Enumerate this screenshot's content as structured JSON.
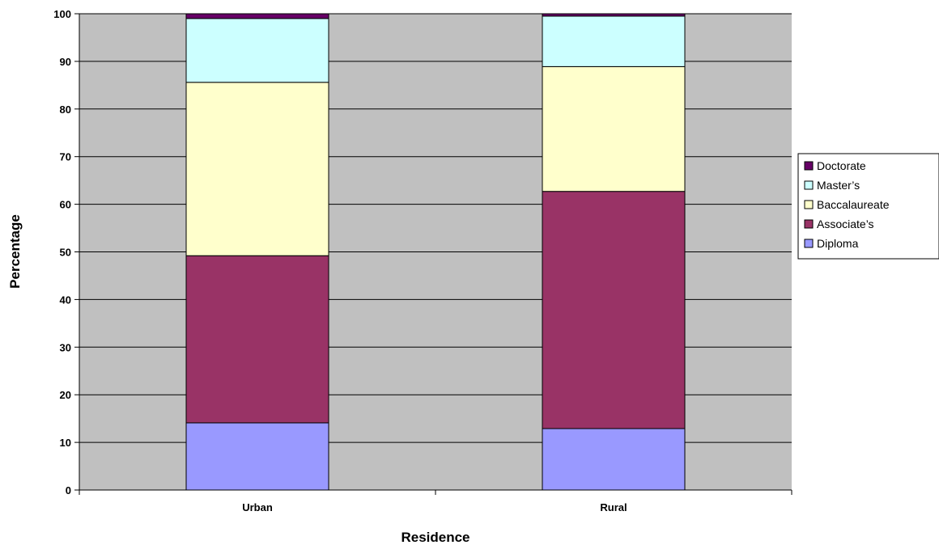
{
  "chart_data": {
    "type": "bar",
    "stacked": true,
    "title": "",
    "xlabel": "Residence",
    "ylabel": "Percentage",
    "categories": [
      "Urban",
      "Rural"
    ],
    "ylim": [
      0,
      100
    ],
    "yticks": [
      "0",
      "10",
      "20",
      "30",
      "40",
      "50",
      "60",
      "70",
      "80",
      "90",
      "100"
    ],
    "grid": true,
    "legend_position": "right",
    "series": [
      {
        "name": "Diploma",
        "values": [
          14.1,
          12.9
        ],
        "color": "#9999ff"
      },
      {
        "name": "Associate’s",
        "values": [
          35.1,
          49.8
        ],
        "color": "#993366"
      },
      {
        "name": "Baccalaureate",
        "values": [
          36.4,
          26.2
        ],
        "color": "#ffffcc"
      },
      {
        "name": "Master’s",
        "values": [
          13.4,
          10.6
        ],
        "color": "#ccffff"
      },
      {
        "name": "Doctorate",
        "values": [
          1.0,
          0.5
        ],
        "color": "#660066"
      }
    ],
    "plot_background": "#c0c0c0"
  }
}
